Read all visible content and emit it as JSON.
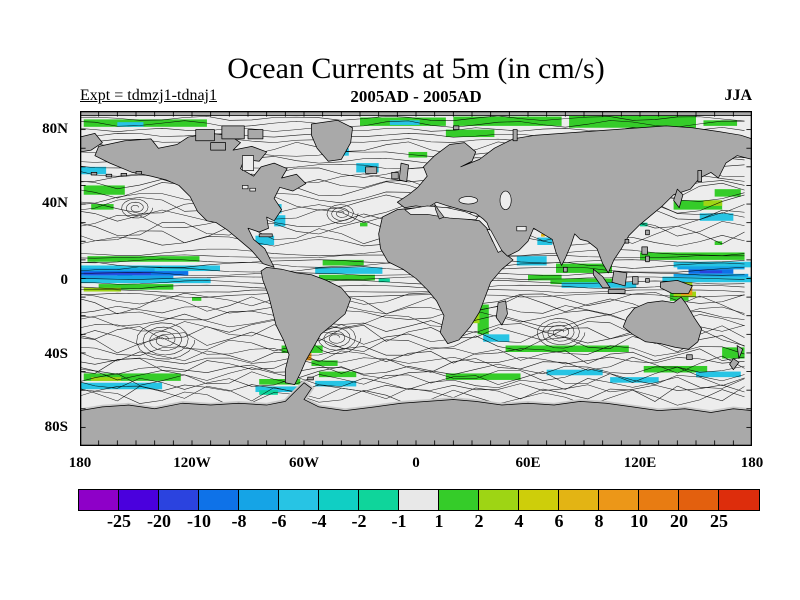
{
  "figure": {
    "title": "Ocean Currents at 5m (in cm/s)",
    "subtitle": "2005AD - 2005AD",
    "experiment_label": "Expt = tdmzj1-tdnaj1",
    "season_label": "JJA"
  },
  "axes": {
    "lat_labels": [
      "80N",
      "40N",
      "0",
      "40S",
      "80S"
    ],
    "lon_labels": [
      "180",
      "120W",
      "60W",
      "0",
      "60E",
      "120E",
      "180"
    ]
  },
  "map_colors": {
    "ocean": "#EDEDED",
    "land": "#A9A9A9",
    "shelf": "#C9C9C9",
    "coastline": "#000000",
    "frame": "#000000"
  },
  "colorbar": {
    "tick_labels": [
      "-25",
      "-20",
      "-10",
      "-8",
      "-6",
      "-4",
      "-2",
      "-1",
      "1",
      "2",
      "4",
      "6",
      "8",
      "10",
      "20",
      "25"
    ],
    "colors": [
      "#8E00C8",
      "#4A00DD",
      "#2B43DF",
      "#0E72E8",
      "#15A4E6",
      "#27C4E4",
      "#10CFC4",
      "#0FD59B",
      "#E8E8E8",
      "#35CC29",
      "#9ED514",
      "#CECE0A",
      "#E3B414",
      "#EC9718",
      "#E87C12",
      "#E3600E",
      "#DD2D0C"
    ]
  },
  "chart_data": {
    "type": "heatmap",
    "title": "Ocean Currents at 5m (in cm/s)",
    "subtitle": "2005AD - 2005AD",
    "experiment": "tdmzj1-tdnaj1",
    "season": "JJA",
    "units": "cm/s",
    "projection": "equirectangular world map",
    "x_axis": {
      "ticks": [
        "180",
        "120W",
        "60W",
        "0",
        "60E",
        "120E",
        "180"
      ],
      "range_deg_lon": [
        -180,
        180
      ]
    },
    "y_axis": {
      "ticks": [
        "80N",
        "40N",
        "0",
        "40S",
        "80S"
      ],
      "range_deg_lat": [
        -90,
        90
      ]
    },
    "contour_levels": [
      -25,
      -20,
      -10,
      -8,
      -6,
      -4,
      -2,
      -1,
      1,
      2,
      4,
      6,
      8,
      10,
      20,
      25
    ],
    "palette": [
      "#8E00C8",
      "#4A00DD",
      "#2B43DF",
      "#0E72E8",
      "#15A4E6",
      "#27C4E4",
      "#10CFC4",
      "#0FD59B",
      "#E8E8E8",
      "#35CC29",
      "#9ED514",
      "#CECE0A",
      "#E3B414",
      "#EC9718",
      "#E87C12",
      "#E3600E",
      "#DD2D0C"
    ],
    "legend_position": "bottom-horizontal",
    "overlays": [
      "black streamlines of surface current with arrowheads",
      "gray land mask"
    ],
    "notable_features": [
      "strong blue/cyan westward equatorial Pacific band",
      "blue core north of New Guinea",
      "green bands along Arctic margin near 80N",
      "green/cyan Antarctic Circumpolar filaments 40S-60S",
      "orange patches at Brazil-Malvinas confluence and Coral Sea"
    ]
  }
}
